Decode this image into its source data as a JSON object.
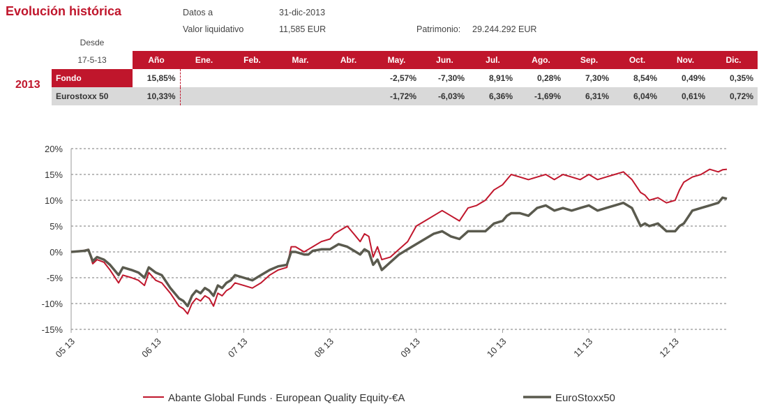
{
  "header": {
    "title": "Evolución histórica",
    "datos_label": "Datos a",
    "datos_value": "31-dic-2013",
    "valor_label": "Valor liquidativo",
    "valor_value": "11,585 EUR",
    "patrimonio_label": "Patrimonio:",
    "patrimonio_value": "29.244.292 EUR"
  },
  "table": {
    "desde_label": "Desde",
    "desde_date": "17-5-13",
    "year": "2013",
    "columns": [
      "Año",
      "Ene.",
      "Feb.",
      "Mar.",
      "Abr.",
      "May.",
      "Jun.",
      "Jul.",
      "Ago.",
      "Sep.",
      "Oct.",
      "Nov.",
      "Dic."
    ],
    "rows": [
      {
        "label": "Fondo",
        "values": [
          "15,85%",
          "",
          "",
          "",
          "",
          "-2,57%",
          "-7,30%",
          "8,91%",
          "0,28%",
          "7,30%",
          "8,54%",
          "0,49%",
          "0,35%"
        ]
      },
      {
        "label": "Eurostoxx 50",
        "values": [
          "10,33%",
          "",
          "",
          "",
          "",
          "-1,72%",
          "-6,03%",
          "6,36%",
          "-1,69%",
          "6,31%",
          "6,04%",
          "0,61%",
          "0,72%"
        ]
      }
    ]
  },
  "chart_data": {
    "type": "line",
    "title": "",
    "xlabel": "",
    "ylabel": "",
    "ylim": [
      -15,
      20
    ],
    "yticks": [
      "20%",
      "15%",
      "10%",
      "5%",
      "0%",
      "-5%",
      "-10%",
      "-15%"
    ],
    "yticks_values": [
      20,
      15,
      10,
      5,
      0,
      -5,
      -10,
      -15
    ],
    "xticks": [
      "05 13",
      "06 13",
      "07 13",
      "08 13",
      "09 13",
      "10 13",
      "11 13",
      "12 13"
    ],
    "xticks_values": [
      0,
      1,
      2,
      3,
      4,
      5,
      6,
      7
    ],
    "grid": "horizontal dashed",
    "legend_position": "bottom",
    "series": [
      {
        "name": "Abante Global Funds · European Quality Equity-€A",
        "color": "#c0162c",
        "x": [
          0,
          0.15,
          0.2,
          0.25,
          0.3,
          0.38,
          0.45,
          0.55,
          0.6,
          0.7,
          0.78,
          0.85,
          0.9,
          0.98,
          1.05,
          1.15,
          1.25,
          1.3,
          1.35,
          1.4,
          1.45,
          1.5,
          1.55,
          1.6,
          1.65,
          1.7,
          1.75,
          1.8,
          1.85,
          1.9,
          2.0,
          2.1,
          2.2,
          2.3,
          2.4,
          2.5,
          2.55,
          2.6,
          2.7,
          2.75,
          2.8,
          2.9,
          3.0,
          3.05,
          3.1,
          3.2,
          3.25,
          3.3,
          3.35,
          3.4,
          3.45,
          3.5,
          3.55,
          3.6,
          3.7,
          3.8,
          3.9,
          4.0,
          4.1,
          4.2,
          4.3,
          4.4,
          4.5,
          4.6,
          4.7,
          4.8,
          4.9,
          5.0,
          5.05,
          5.1,
          5.2,
          5.3,
          5.4,
          5.5,
          5.6,
          5.7,
          5.8,
          5.9,
          6.0,
          6.1,
          6.2,
          6.3,
          6.4,
          6.5,
          6.6,
          6.65,
          6.7,
          6.8,
          6.9,
          7.0,
          7.05,
          7.1,
          7.2,
          7.3,
          7.4,
          7.5,
          7.55,
          7.6
        ],
        "y": [
          0,
          0.3,
          0.5,
          -2.3,
          -1.5,
          -2.0,
          -3.5,
          -6.0,
          -4.5,
          -5.0,
          -5.5,
          -6.5,
          -4.0,
          -5.5,
          -6.0,
          -8.0,
          -10.5,
          -11.0,
          -12.0,
          -10.0,
          -9.0,
          -9.5,
          -8.5,
          -9.0,
          -10.5,
          -8.0,
          -8.5,
          -7.5,
          -7.0,
          -6.0,
          -6.5,
          -7.0,
          -6.0,
          -4.5,
          -3.5,
          -3.0,
          1.0,
          1.0,
          0.0,
          0.5,
          1.0,
          2.0,
          2.5,
          3.5,
          4.0,
          5.0,
          4.0,
          3.0,
          2.0,
          3.5,
          3.0,
          -1.0,
          1.0,
          -1.5,
          -1.0,
          0.5,
          2.0,
          5.0,
          6.0,
          7.0,
          8.0,
          7.0,
          6.0,
          8.5,
          9.0,
          10.0,
          12.0,
          13.0,
          14.0,
          15.0,
          14.5,
          14.0,
          14.5,
          15.0,
          14.0,
          15.0,
          14.5,
          14.0,
          15.0,
          14.0,
          14.5,
          15.0,
          15.5,
          14.0,
          11.5,
          11.0,
          10.0,
          10.5,
          9.5,
          10.0,
          12.0,
          13.5,
          14.5,
          15.0,
          16.0,
          15.5,
          15.9,
          16.0
        ]
      },
      {
        "name": "EuroStoxx50",
        "color": "#5a5a4e",
        "x": [
          0,
          0.15,
          0.2,
          0.25,
          0.3,
          0.38,
          0.45,
          0.55,
          0.6,
          0.7,
          0.78,
          0.85,
          0.9,
          0.98,
          1.05,
          1.15,
          1.25,
          1.3,
          1.35,
          1.4,
          1.45,
          1.5,
          1.55,
          1.6,
          1.65,
          1.7,
          1.75,
          1.8,
          1.85,
          1.9,
          2.0,
          2.1,
          2.2,
          2.3,
          2.4,
          2.5,
          2.55,
          2.6,
          2.7,
          2.75,
          2.8,
          2.9,
          3.0,
          3.05,
          3.1,
          3.2,
          3.25,
          3.3,
          3.35,
          3.4,
          3.45,
          3.5,
          3.55,
          3.6,
          3.7,
          3.8,
          3.9,
          4.0,
          4.1,
          4.2,
          4.3,
          4.4,
          4.5,
          4.6,
          4.7,
          4.8,
          4.9,
          5.0,
          5.05,
          5.1,
          5.2,
          5.3,
          5.4,
          5.5,
          5.6,
          5.7,
          5.8,
          5.9,
          6.0,
          6.1,
          6.2,
          6.3,
          6.4,
          6.5,
          6.6,
          6.65,
          6.7,
          6.8,
          6.9,
          7.0,
          7.05,
          7.1,
          7.2,
          7.3,
          7.4,
          7.5,
          7.55,
          7.6
        ],
        "y": [
          0,
          0.2,
          0.4,
          -1.8,
          -1.0,
          -1.5,
          -2.5,
          -4.5,
          -3.0,
          -3.5,
          -4.0,
          -5.0,
          -3.0,
          -4.0,
          -4.5,
          -7.0,
          -9.0,
          -9.5,
          -10.5,
          -8.5,
          -7.5,
          -8.0,
          -7.0,
          -7.5,
          -8.5,
          -6.5,
          -7.0,
          -6.0,
          -5.5,
          -4.5,
          -5.0,
          -5.5,
          -4.5,
          -3.5,
          -2.8,
          -2.5,
          0.0,
          0.0,
          -0.5,
          -0.5,
          0.2,
          0.5,
          0.5,
          1.0,
          1.5,
          1.0,
          0.5,
          0.0,
          -0.5,
          0.5,
          0.0,
          -2.5,
          -1.5,
          -3.5,
          -2.0,
          -0.5,
          0.5,
          1.5,
          2.5,
          3.5,
          4.0,
          3.0,
          2.5,
          4.0,
          4.0,
          4.0,
          5.5,
          6.0,
          7.0,
          7.5,
          7.5,
          7.0,
          8.5,
          9.0,
          8.0,
          8.5,
          8.0,
          8.5,
          9.0,
          8.0,
          8.5,
          9.0,
          9.5,
          8.5,
          5.0,
          5.5,
          5.0,
          5.5,
          4.0,
          4.0,
          5.0,
          5.5,
          8.0,
          8.5,
          9.0,
          9.5,
          10.5,
          10.3
        ]
      }
    ]
  }
}
